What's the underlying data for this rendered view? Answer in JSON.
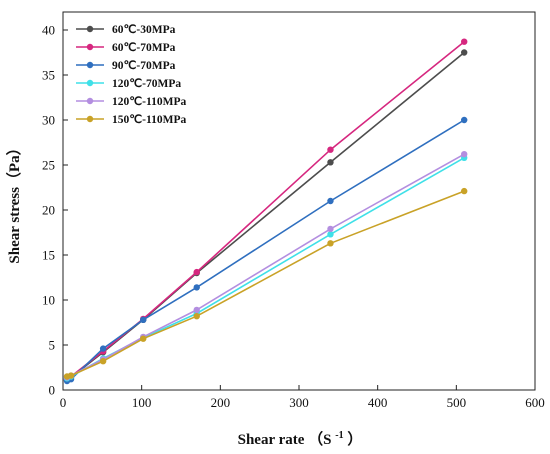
{
  "chart_data": {
    "type": "line",
    "xlabel": "Shear rate",
    "xlabel_unit_open": "（S",
    "xlabel_unit_exp": "-1",
    "xlabel_unit_close": "）",
    "ylabel": "Shear stress（Pa）",
    "xlim": [
      0,
      600
    ],
    "ylim": [
      0,
      42
    ],
    "xticks": [
      0,
      100,
      200,
      300,
      400,
      500,
      600
    ],
    "yticks": [
      0,
      5,
      10,
      15,
      20,
      25,
      30,
      35,
      40
    ],
    "grid": false,
    "legend_position": "top-left",
    "x": [
      5.1,
      10.2,
      51,
      102,
      170,
      340,
      510
    ],
    "series": [
      {
        "name": "60℃-30MPa",
        "color": "#4d4d4d",
        "values": [
          1.1,
          1.4,
          4.2,
          7.8,
          13.0,
          25.3,
          37.5
        ]
      },
      {
        "name": "60℃-70MPa",
        "color": "#d6277f",
        "values": [
          1.2,
          1.5,
          4.3,
          7.9,
          13.1,
          26.7,
          38.7
        ]
      },
      {
        "name": "90℃-70MPa",
        "color": "#2f6fbf",
        "values": [
          1.0,
          1.2,
          4.6,
          7.8,
          11.4,
          21.0,
          30.0
        ]
      },
      {
        "name": "120℃-70MPa",
        "color": "#3fe0e8",
        "values": [
          1.3,
          1.5,
          3.5,
          5.8,
          8.5,
          17.3,
          25.8
        ]
      },
      {
        "name": "120℃-110MPa",
        "color": "#b38ee0",
        "values": [
          1.4,
          1.6,
          3.4,
          5.9,
          8.9,
          17.9,
          26.2
        ]
      },
      {
        "name": "150℃-110MPa",
        "color": "#c9a227",
        "values": [
          1.5,
          1.6,
          3.2,
          5.7,
          8.2,
          16.3,
          22.1
        ]
      }
    ]
  }
}
